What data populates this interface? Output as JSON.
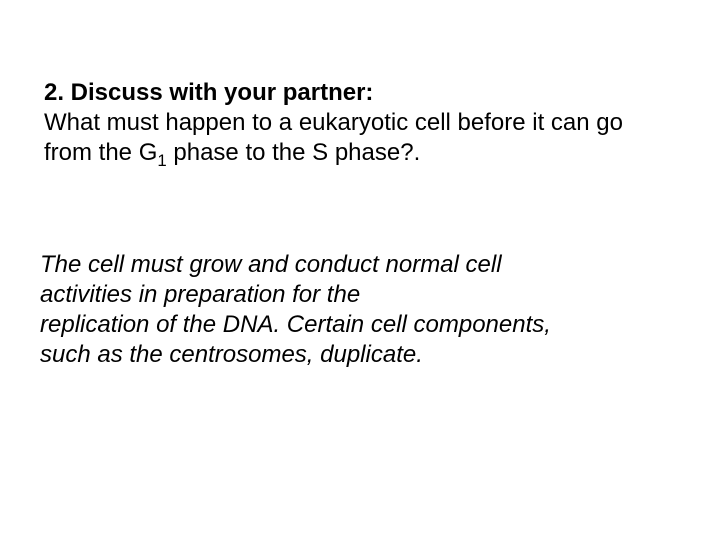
{
  "slide": {
    "background_color": "#ffffff",
    "text_color": "#000000",
    "font_family": "Arial",
    "question": {
      "heading": "2.  Discuss with your partner:",
      "body_pre": "What must happen to a eukaryotic cell before it can go from the G",
      "subscript": "1",
      "body_post": " phase to the S phase?.",
      "font_size": 24,
      "heading_weight": "bold",
      "body_weight": "normal"
    },
    "answer": {
      "line1": "The cell must grow and conduct normal cell",
      "line2": "activities in preparation for the",
      "line3": "replication of the DNA. Certain cell components,",
      "line4": "such as the centrosomes, duplicate.",
      "font_size": 24,
      "font_style": "italic"
    }
  }
}
